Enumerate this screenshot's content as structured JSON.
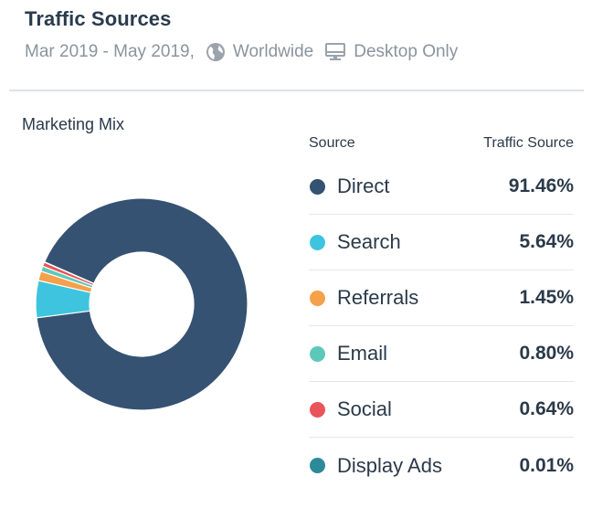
{
  "header": {
    "title": "Traffic Sources",
    "date_range": "Mar 2019 - May 2019,",
    "region": "Worldwide",
    "device": "Desktop Only",
    "region_icon": "globe-icon",
    "device_icon": "desktop-monitor-icon"
  },
  "chart_data": {
    "type": "pie",
    "title": "Marketing Mix",
    "subtype": "donut",
    "column_headers": {
      "source": "Source",
      "value": "Traffic Source"
    },
    "categories": [
      "Direct",
      "Search",
      "Referrals",
      "Email",
      "Social",
      "Display Ads"
    ],
    "values": [
      91.46,
      5.64,
      1.45,
      0.8,
      0.64,
      0.01
    ],
    "value_labels": [
      "91.46%",
      "5.64%",
      "1.45%",
      "0.80%",
      "0.64%",
      "0.01%"
    ],
    "colors": [
      "#355272",
      "#3ec4de",
      "#f5a04b",
      "#5ec8b8",
      "#e8545a",
      "#2c8a9a"
    ],
    "unit": "%"
  }
}
